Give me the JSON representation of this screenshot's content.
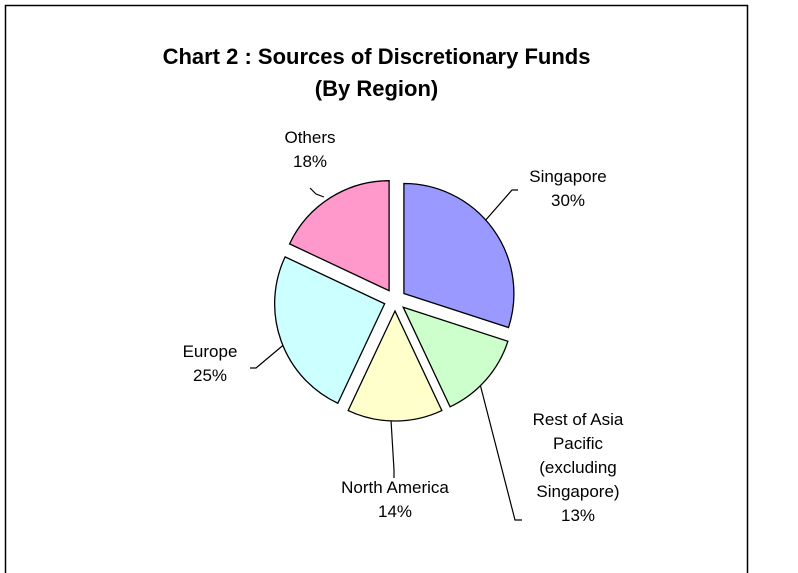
{
  "chart_data": {
    "type": "pie",
    "title": "Chart 2 : Sources of Discretionary Funds",
    "subtitle": "(By Region)",
    "categories": [
      "Singapore",
      "Rest of Asia Pacific (excluding Singapore)",
      "North America",
      "Europe",
      "Others"
    ],
    "values": [
      30,
      13,
      14,
      25,
      18
    ],
    "value_labels": [
      "30%",
      "13%",
      "14%",
      "25%",
      "18%"
    ],
    "colors": [
      "#9999ff",
      "#ccffcc",
      "#ffffcc",
      "#ccffff",
      "#ff99cc"
    ]
  }
}
